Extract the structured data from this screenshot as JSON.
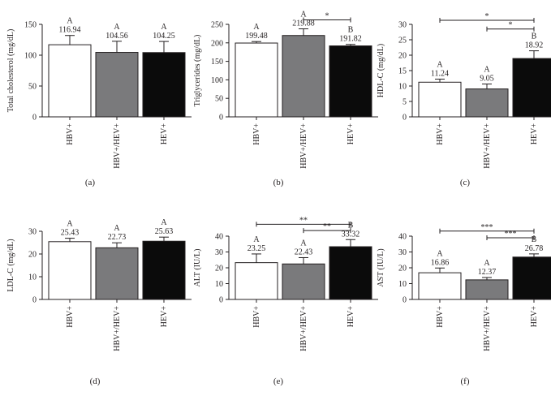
{
  "colors": {
    "HBV+": "#ffffff",
    "HBV+/HEV+": "#7a7a7c",
    "HEV+": "#0b0b0b",
    "ink": "#231f20"
  },
  "chart_data": [
    {
      "type": "bar",
      "panel_label": "(a)",
      "categories": [
        "HBV+",
        "HBV+/HEV+",
        "HEV+"
      ],
      "values": [
        116.94,
        104.56,
        104.25
      ],
      "errors": [
        15,
        18,
        18
      ],
      "value_labels": [
        "116.94",
        "104.56",
        "104.25"
      ],
      "letters": [
        "A",
        "A",
        "A"
      ],
      "ylabel": "Total cholesterol (mg/dL)",
      "ylim": [
        0,
        150
      ],
      "yticks": [
        0,
        50,
        100,
        150
      ],
      "significance": []
    },
    {
      "type": "bar",
      "panel_label": "(b)",
      "categories": [
        "HBV+",
        "HBV+/HEV+",
        "HEV+"
      ],
      "values": [
        199.48,
        219.88,
        191.82
      ],
      "errors": [
        4,
        18,
        4
      ],
      "value_labels": [
        "199.48",
        "219.88",
        "191.82"
      ],
      "letters": [
        "A",
        "A",
        "B"
      ],
      "ylabel": "Triglycerides (mg/dL)",
      "ylim": [
        0,
        250
      ],
      "yticks": [
        0,
        50,
        100,
        150,
        200,
        250
      ],
      "significance": [
        {
          "from": 1,
          "to": 2,
          "label": "*",
          "y": 262
        }
      ]
    },
    {
      "type": "bar",
      "panel_label": "(c)",
      "categories": [
        "HBV+",
        "HBV+/HEV+",
        "HEV+"
      ],
      "values": [
        11.24,
        9.05,
        18.92
      ],
      "errors": [
        1,
        1.6,
        2.5
      ],
      "value_labels": [
        "11.24",
        "9.05",
        "18.92"
      ],
      "letters": [
        "A",
        "A",
        "B"
      ],
      "ylabel": "HDL-C (mg/dL)",
      "ylim": [
        0,
        30
      ],
      "yticks": [
        0,
        5,
        10,
        15,
        20,
        25,
        30
      ],
      "significance": [
        {
          "from": 0,
          "to": 2,
          "label": "*",
          "y": 31.3
        },
        {
          "from": 1,
          "to": 2,
          "label": "*",
          "y": 28.5
        }
      ]
    },
    {
      "type": "bar",
      "panel_label": "(d)",
      "categories": [
        "HBV+",
        "HBV+/HEV+",
        "HEV+"
      ],
      "values": [
        25.43,
        22.73,
        25.63
      ],
      "errors": [
        1.5,
        2.2,
        1.8
      ],
      "value_labels": [
        "25.43",
        "22.73",
        "25.63"
      ],
      "letters": [
        "A",
        "A",
        "A"
      ],
      "ylabel": "LDL-C (mg/dL)",
      "ylim": [
        0,
        30
      ],
      "yticks": [
        0,
        10,
        20,
        30
      ],
      "significance": []
    },
    {
      "type": "bar",
      "panel_label": "(e)",
      "categories": [
        "HBV+",
        "HBV+/HEV+",
        "HEV+"
      ],
      "values": [
        23.25,
        22.43,
        33.32
      ],
      "errors": [
        5.5,
        4,
        4.5
      ],
      "value_labels": [
        "23.25",
        "22.43",
        "33.32"
      ],
      "letters": [
        "A",
        "A",
        "B"
      ],
      "ylabel": "ALT (IU/L)",
      "ylim": [
        0,
        40
      ],
      "yticks": [
        0,
        10,
        20,
        30,
        40
      ],
      "significance": [
        {
          "from": 0,
          "to": 2,
          "label": "**",
          "y": 47.5
        },
        {
          "from": 1,
          "to": 2,
          "label": "**",
          "y": 43.5
        }
      ]
    },
    {
      "type": "bar",
      "panel_label": "(f)",
      "categories": [
        "HBV+",
        "HBV+/HEV+",
        "HEV+"
      ],
      "values": [
        16.86,
        12.37,
        26.78
      ],
      "errors": [
        3,
        1.5,
        2
      ],
      "value_labels": [
        "16.86",
        "12.37",
        "26.78"
      ],
      "letters": [
        "A",
        "A",
        "B"
      ],
      "ylabel": "AST (IU/L)",
      "ylim": [
        0,
        40
      ],
      "yticks": [
        0,
        10,
        20,
        30,
        40
      ],
      "significance": [
        {
          "from": 0,
          "to": 2,
          "label": "***",
          "y": 43.2
        },
        {
          "from": 1,
          "to": 2,
          "label": "***",
          "y": 39
        }
      ]
    }
  ]
}
